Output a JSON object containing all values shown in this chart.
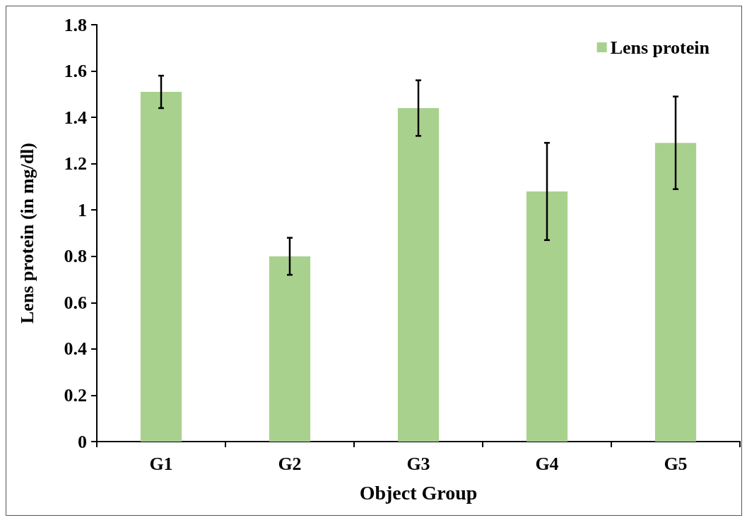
{
  "chart_data": {
    "type": "bar",
    "xlabel": "Object Group",
    "ylabel": "Lens protein (in mg/dl)",
    "categories": [
      "G1",
      "G2",
      "G3",
      "G4",
      "G5"
    ],
    "series": [
      {
        "name": "Lens protein",
        "color": "#a9d18e",
        "values": [
          1.51,
          0.8,
          1.44,
          1.08,
          1.29
        ],
        "errors": [
          0.07,
          0.08,
          0.12,
          0.21,
          0.2
        ]
      }
    ],
    "ylim": [
      0,
      1.8
    ],
    "yticks": [
      0,
      0.2,
      0.4,
      0.6,
      0.8,
      1,
      1.2,
      1.4,
      1.6,
      1.8
    ],
    "grid": false,
    "legend": "top right"
  }
}
